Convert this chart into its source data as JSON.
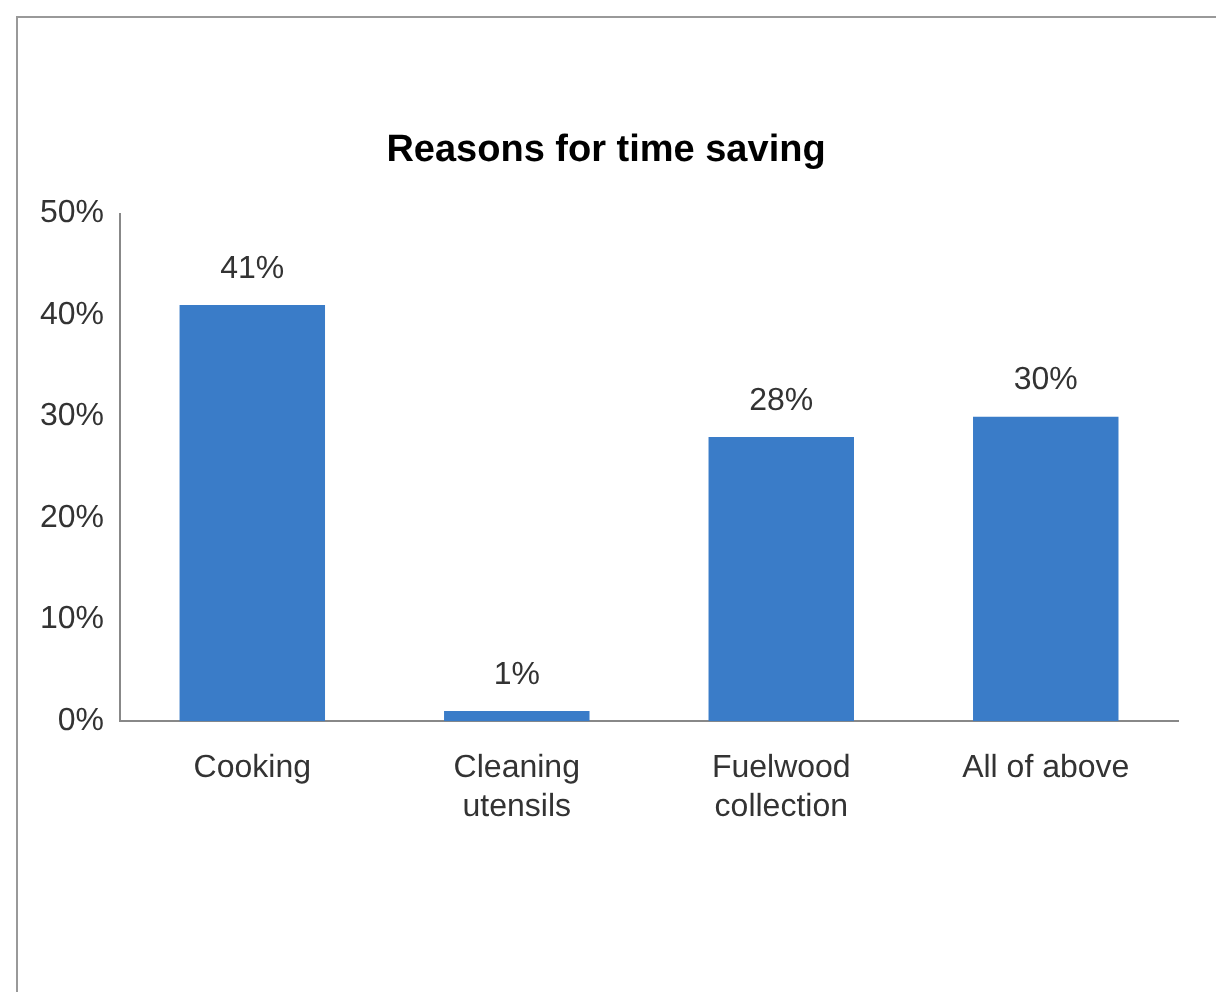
{
  "chart_data": {
    "type": "bar",
    "title": "Reasons for time saving",
    "categories": [
      "Cooking",
      "Cleaning utensils",
      "Fuelwood collection",
      "All of above"
    ],
    "values": [
      41,
      1,
      28,
      30
    ],
    "color": "#3a7cc8",
    "value_labels": [
      "41%",
      "1%",
      "28%",
      "30%"
    ],
    "ylim": [
      0,
      50
    ],
    "yticks": [
      {
        "value": 0,
        "label": "0%"
      },
      {
        "value": 10,
        "label": "10%"
      },
      {
        "value": 20,
        "label": "20%"
      },
      {
        "value": 30,
        "label": "30%"
      },
      {
        "value": 40,
        "label": "40%"
      },
      {
        "value": 50,
        "label": "50%"
      }
    ],
    "grid": false,
    "legend": false
  }
}
